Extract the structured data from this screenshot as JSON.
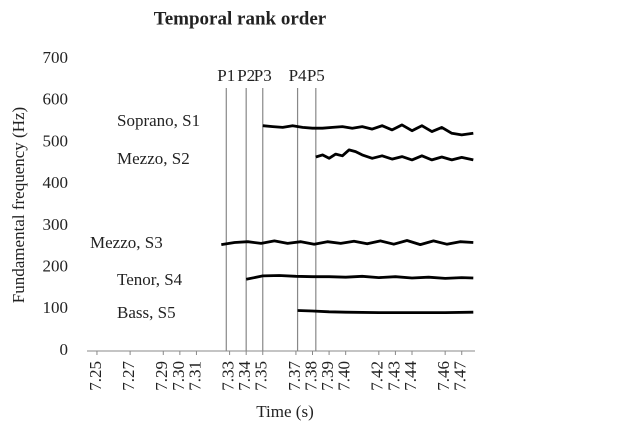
{
  "chart_data": {
    "type": "line",
    "title": "Temporal rank order",
    "xlabel": "Time (s)",
    "ylabel": "Fundamental frequency (Hz)",
    "xlim": [
      7.244,
      7.478
    ],
    "xticks": [
      7.25,
      7.27,
      7.29,
      {
        "value": 7.3,
        "label": "7.30"
      },
      7.31,
      7.33,
      7.34,
      7.35,
      7.37,
      7.38,
      7.39,
      {
        "value": 7.4,
        "label": "7.40"
      },
      7.42,
      7.43,
      7.44,
      7.46,
      7.47
    ],
    "ylim": [
      0,
      700
    ],
    "yticks": [
      0,
      100,
      200,
      300,
      400,
      500,
      600,
      700
    ],
    "grid": false,
    "annotations": [
      {
        "label": "P1",
        "x": 7.328
      },
      {
        "label": "P2",
        "x": 7.34
      },
      {
        "label": "P3",
        "x": 7.35
      },
      {
        "label": "P4",
        "x": 7.371
      },
      {
        "label": "P5",
        "x": 7.382
      }
    ],
    "series": [
      {
        "name": "Soprano, S1",
        "color": "#000000",
        "x": [
          7.35,
          7.356,
          7.362,
          7.368,
          7.374,
          7.38,
          7.386,
          7.392,
          7.398,
          7.404,
          7.41,
          7.416,
          7.422,
          7.428,
          7.434,
          7.44,
          7.446,
          7.452,
          7.458,
          7.464,
          7.47,
          7.477
        ],
        "values": [
          540,
          538,
          536,
          540,
          536,
          534,
          534,
          536,
          538,
          534,
          538,
          532,
          540,
          530,
          542,
          528,
          540,
          526,
          536,
          522,
          518,
          522
        ]
      },
      {
        "name": "Mezzo, S2",
        "color": "#000000",
        "x": [
          7.382,
          7.386,
          7.39,
          7.394,
          7.398,
          7.402,
          7.406,
          7.41,
          7.416,
          7.422,
          7.428,
          7.434,
          7.44,
          7.446,
          7.452,
          7.458,
          7.464,
          7.47,
          7.477
        ],
        "values": [
          465,
          470,
          462,
          472,
          468,
          482,
          478,
          470,
          462,
          468,
          460,
          466,
          458,
          468,
          458,
          465,
          458,
          464,
          458
        ]
      },
      {
        "name": "Mezzo, S3",
        "color": "#000000",
        "x": [
          7.325,
          7.333,
          7.341,
          7.349,
          7.357,
          7.365,
          7.373,
          7.381,
          7.389,
          7.397,
          7.405,
          7.413,
          7.421,
          7.429,
          7.437,
          7.445,
          7.453,
          7.461,
          7.469,
          7.477
        ],
        "values": [
          255,
          260,
          262,
          258,
          264,
          258,
          262,
          256,
          262,
          258,
          263,
          257,
          264,
          256,
          265,
          255,
          264,
          256,
          262,
          260
        ]
      },
      {
        "name": "Tenor, S4",
        "color": "#000000",
        "x": [
          7.34,
          7.35,
          7.36,
          7.37,
          7.38,
          7.39,
          7.4,
          7.41,
          7.42,
          7.43,
          7.44,
          7.45,
          7.46,
          7.47,
          7.477
        ],
        "values": [
          172,
          180,
          181,
          179,
          178,
          178,
          177,
          179,
          176,
          178,
          175,
          177,
          174,
          176,
          175
        ]
      },
      {
        "name": "Bass, S5",
        "color": "#000000",
        "x": [
          7.371,
          7.38,
          7.39,
          7.4,
          7.42,
          7.44,
          7.46,
          7.477
        ],
        "values": [
          97,
          96,
          94,
          93,
          92,
          92,
          92,
          93
        ]
      }
    ]
  }
}
